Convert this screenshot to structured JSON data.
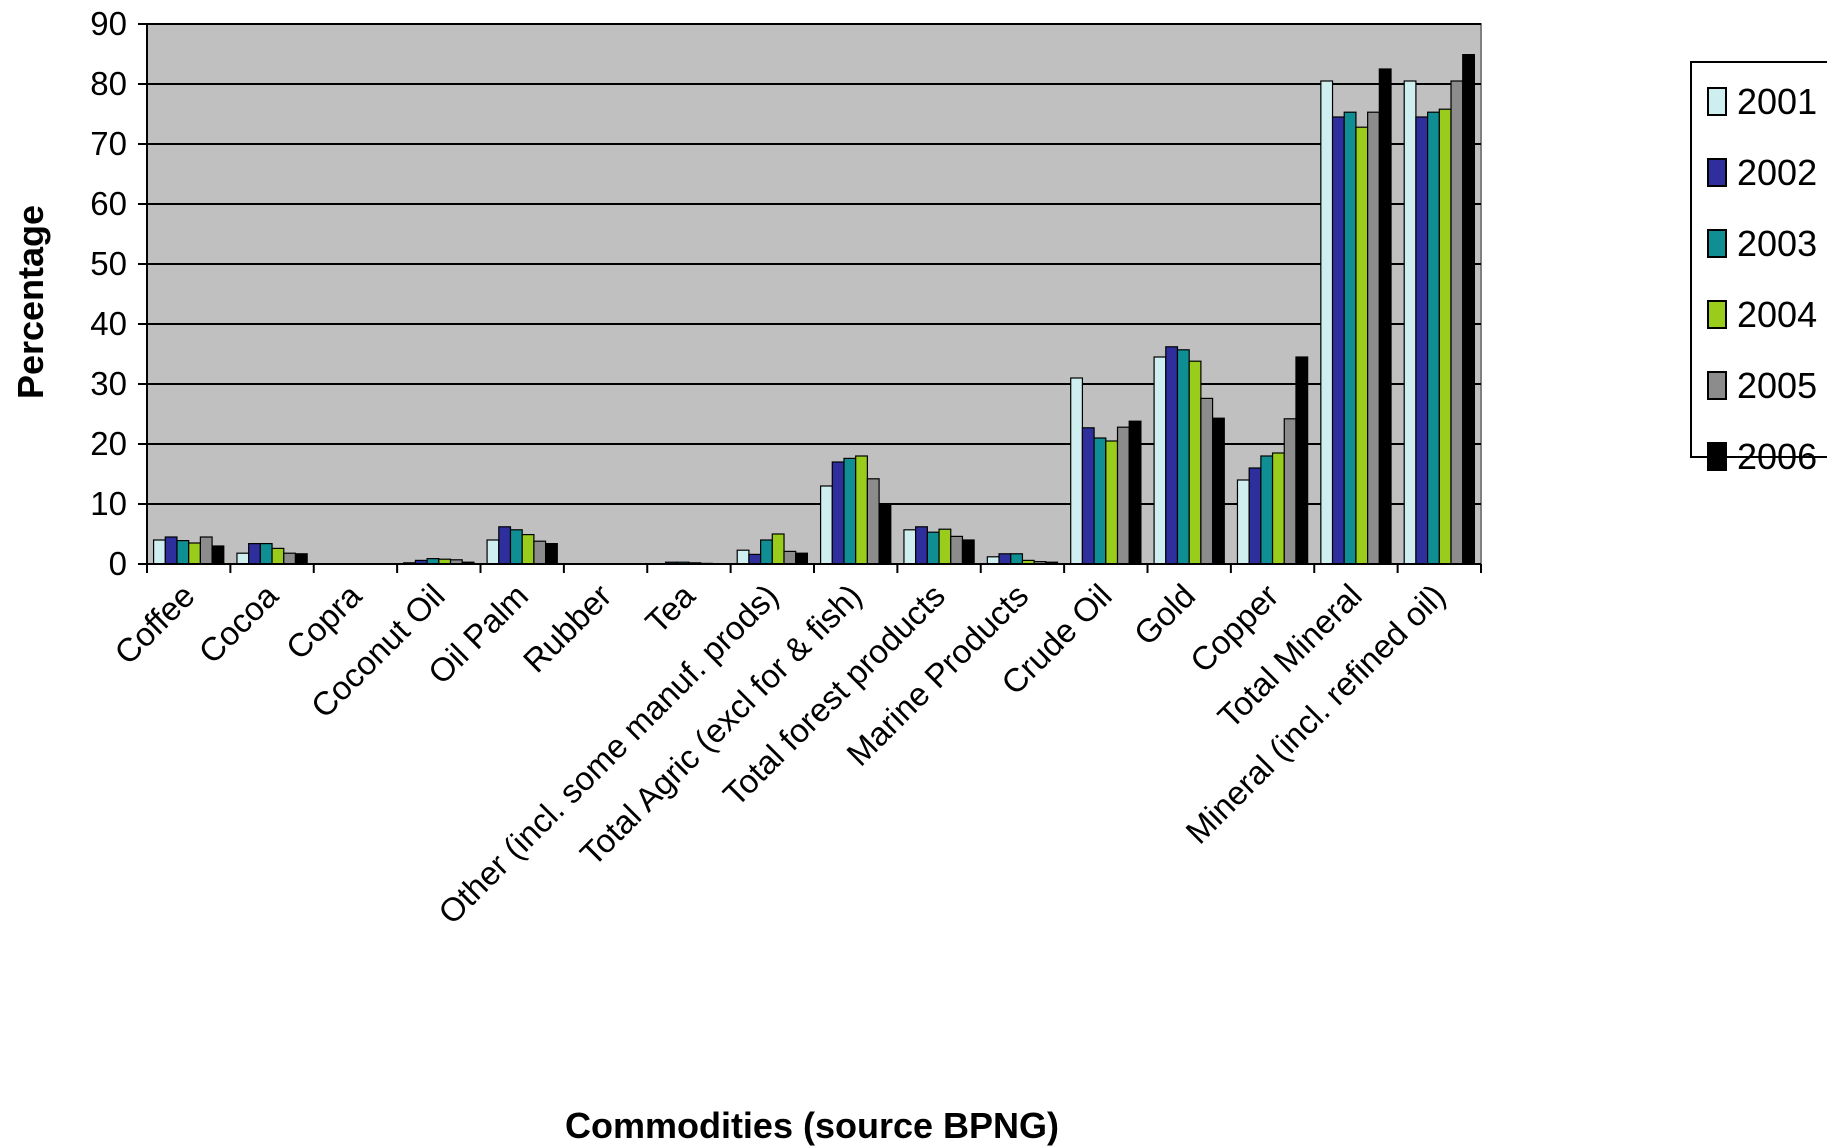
{
  "chart_data": {
    "type": "bar",
    "title": "",
    "xlabel": "Commodities (source BPNG)",
    "ylabel": "Percentage",
    "ylim": [
      0,
      90
    ],
    "yticks": [
      0,
      10,
      20,
      30,
      40,
      50,
      60,
      70,
      80,
      90
    ],
    "grid": "horizontal",
    "legend_position": "right",
    "plot_background": "#c0c0c0",
    "categories": [
      "Coffee",
      "Cocoa",
      "Copra",
      "Coconut Oil",
      "Oil Palm",
      "Rubber",
      "Tea",
      "Other (incl. some manuf. prods)",
      "Total Agric (excl for & fish)",
      "Total forest products",
      "Marine Products",
      "Crude Oil",
      "Gold",
      "Copper",
      "Total Mineral",
      "Mineral (incl. refined oil)"
    ],
    "series": [
      {
        "name": "2001",
        "color": "#cfeef0",
        "values": [
          4,
          1.8,
          0,
          0.2,
          4,
          0,
          0,
          2.3,
          13,
          5.7,
          1.2,
          31,
          34.5,
          14,
          80.5,
          80.5
        ]
      },
      {
        "name": "2002",
        "color": "#2e2e9c",
        "values": [
          4.5,
          3.4,
          0,
          0.6,
          6.2,
          0,
          0.3,
          1.6,
          17,
          6.2,
          1.7,
          22.7,
          36.2,
          16,
          74.5,
          74.5
        ]
      },
      {
        "name": "2003",
        "color": "#0f8f93",
        "values": [
          3.9,
          3.4,
          0,
          0.9,
          5.7,
          0,
          0.3,
          4,
          17.6,
          5.3,
          1.7,
          21,
          35.7,
          18,
          75.3,
          75.3
        ]
      },
      {
        "name": "2004",
        "color": "#9acc1c",
        "values": [
          3.5,
          2.6,
          0,
          0.8,
          4.9,
          0,
          0.2,
          5,
          18,
          5.8,
          0.6,
          20.5,
          33.8,
          18.5,
          72.8,
          75.8
        ]
      },
      {
        "name": "2005",
        "color": "#8c8c8c",
        "values": [
          4.5,
          1.8,
          0,
          0.7,
          3.8,
          0,
          0.1,
          2.1,
          14.2,
          4.6,
          0.4,
          22.8,
          27.6,
          24.2,
          75.3,
          80.5
        ]
      },
      {
        "name": "2006",
        "color": "#000000",
        "values": [
          3,
          1.7,
          0,
          0.3,
          3.4,
          0,
          0,
          1.8,
          10,
          4,
          0.3,
          23.8,
          24.3,
          34.5,
          82.5,
          84.9
        ]
      }
    ]
  }
}
